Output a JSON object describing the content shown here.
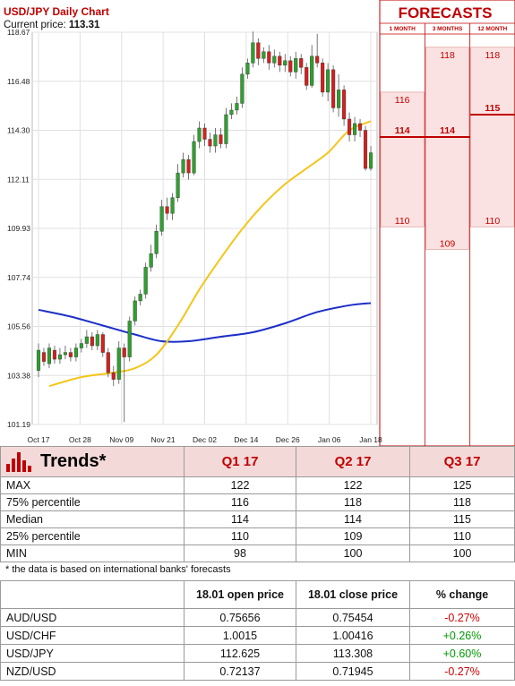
{
  "header": {
    "title": "USD/JPY Daily Chart",
    "price_label": "Current price: ",
    "price_value": "113.31"
  },
  "colors": {
    "candle_up": "#2ea02e",
    "candle_down": "#d42020",
    "ma_short": "#f5c518",
    "ma_long": "#1c2fc7",
    "forecast_red": "#c00000",
    "forecast_panel": "#fbe2e2"
  },
  "chart_data": [
    {
      "type": "candlestick",
      "y_ticks": [
        "118.67",
        "116.48",
        "114.30",
        "112.11",
        "109.93",
        "107.74",
        "105.56",
        "103.38",
        "101.19"
      ],
      "x_ticks": [
        "Oct 17",
        "Oct 28",
        "Nov 09",
        "Nov 21",
        "Dec 02",
        "Dec 14",
        "Dec 26",
        "Jan 06",
        "Jan 18"
      ],
      "ylim": [
        101.19,
        118.67
      ],
      "grid": true,
      "candles": [
        {
          "o": 103.6,
          "c": 104.5,
          "h": 104.8,
          "l": 103.3
        },
        {
          "o": 104.4,
          "c": 104.0,
          "h": 104.6,
          "l": 103.8
        },
        {
          "o": 103.9,
          "c": 104.6,
          "h": 104.8,
          "l": 103.7
        },
        {
          "o": 104.5,
          "c": 104.1,
          "h": 104.7,
          "l": 103.9
        },
        {
          "o": 104.1,
          "c": 104.3,
          "h": 104.6,
          "l": 103.9
        },
        {
          "o": 104.3,
          "c": 104.4,
          "h": 104.7,
          "l": 104.1
        },
        {
          "o": 104.4,
          "c": 104.2,
          "h": 104.6,
          "l": 104.0
        },
        {
          "o": 104.2,
          "c": 104.6,
          "h": 104.8,
          "l": 104.0
        },
        {
          "o": 104.6,
          "c": 104.8,
          "h": 105.0,
          "l": 104.4
        },
        {
          "o": 104.8,
          "c": 105.1,
          "h": 105.4,
          "l": 104.6
        },
        {
          "o": 105.1,
          "c": 104.7,
          "h": 105.3,
          "l": 104.5
        },
        {
          "o": 104.7,
          "c": 105.2,
          "h": 105.4,
          "l": 104.5
        },
        {
          "o": 105.2,
          "c": 104.4,
          "h": 105.3,
          "l": 104.2
        },
        {
          "o": 104.4,
          "c": 103.5,
          "h": 104.6,
          "l": 103.3
        },
        {
          "o": 103.5,
          "c": 103.2,
          "h": 103.8,
          "l": 102.9
        },
        {
          "o": 103.2,
          "c": 104.6,
          "h": 104.9,
          "l": 103.0
        },
        {
          "o": 104.6,
          "c": 104.2,
          "h": 104.8,
          "l": 101.3
        },
        {
          "o": 104.2,
          "c": 105.8,
          "h": 106.0,
          "l": 104.0
        },
        {
          "o": 105.8,
          "c": 106.7,
          "h": 106.9,
          "l": 105.6
        },
        {
          "o": 106.7,
          "c": 107.0,
          "h": 107.2,
          "l": 106.5
        },
        {
          "o": 107.0,
          "c": 108.2,
          "h": 108.4,
          "l": 106.8
        },
        {
          "o": 108.2,
          "c": 108.8,
          "h": 109.2,
          "l": 108.0
        },
        {
          "o": 108.8,
          "c": 109.8,
          "h": 110.1,
          "l": 108.6
        },
        {
          "o": 109.8,
          "c": 110.9,
          "h": 111.2,
          "l": 109.6
        },
        {
          "o": 110.9,
          "c": 110.6,
          "h": 111.3,
          "l": 110.3
        },
        {
          "o": 110.6,
          "c": 111.3,
          "h": 111.5,
          "l": 110.3
        },
        {
          "o": 111.3,
          "c": 112.4,
          "h": 112.8,
          "l": 111.1
        },
        {
          "o": 112.4,
          "c": 113.0,
          "h": 113.3,
          "l": 112.2
        },
        {
          "o": 113.0,
          "c": 112.4,
          "h": 113.2,
          "l": 112.1
        },
        {
          "o": 112.4,
          "c": 113.8,
          "h": 114.1,
          "l": 112.3
        },
        {
          "o": 113.8,
          "c": 114.4,
          "h": 114.7,
          "l": 113.5
        },
        {
          "o": 114.4,
          "c": 113.9,
          "h": 114.6,
          "l": 113.6
        },
        {
          "o": 113.9,
          "c": 113.6,
          "h": 114.2,
          "l": 113.3
        },
        {
          "o": 113.6,
          "c": 114.1,
          "h": 114.4,
          "l": 113.3
        },
        {
          "o": 114.1,
          "c": 113.7,
          "h": 114.4,
          "l": 113.5
        },
        {
          "o": 113.7,
          "c": 115.0,
          "h": 115.3,
          "l": 113.5
        },
        {
          "o": 115.0,
          "c": 115.2,
          "h": 115.5,
          "l": 114.8
        },
        {
          "o": 115.2,
          "c": 115.5,
          "h": 115.8,
          "l": 115.0
        },
        {
          "o": 115.5,
          "c": 116.8,
          "h": 117.1,
          "l": 115.3
        },
        {
          "o": 116.8,
          "c": 117.3,
          "h": 117.5,
          "l": 116.6
        },
        {
          "o": 117.3,
          "c": 118.2,
          "h": 118.7,
          "l": 117.1
        },
        {
          "o": 118.2,
          "c": 117.5,
          "h": 118.4,
          "l": 117.2
        },
        {
          "o": 117.5,
          "c": 117.8,
          "h": 118.0,
          "l": 117.3
        },
        {
          "o": 117.8,
          "c": 117.3,
          "h": 118.1,
          "l": 117.0
        },
        {
          "o": 117.3,
          "c": 117.6,
          "h": 117.9,
          "l": 117.1
        },
        {
          "o": 117.6,
          "c": 117.2,
          "h": 117.8,
          "l": 116.9
        },
        {
          "o": 117.2,
          "c": 117.4,
          "h": 117.7,
          "l": 116.9
        },
        {
          "o": 117.4,
          "c": 116.9,
          "h": 117.6,
          "l": 116.7
        },
        {
          "o": 116.9,
          "c": 117.5,
          "h": 117.8,
          "l": 116.6
        },
        {
          "o": 117.5,
          "c": 117.1,
          "h": 117.7,
          "l": 116.8
        },
        {
          "o": 117.1,
          "c": 116.3,
          "h": 117.3,
          "l": 116.1
        },
        {
          "o": 116.3,
          "c": 117.6,
          "h": 118.1,
          "l": 116.2
        },
        {
          "o": 117.6,
          "c": 117.3,
          "h": 118.6,
          "l": 117.1
        },
        {
          "o": 117.3,
          "c": 116.0,
          "h": 117.5,
          "l": 115.8
        },
        {
          "o": 116.0,
          "c": 117.0,
          "h": 117.3,
          "l": 115.6
        },
        {
          "o": 117.0,
          "c": 115.3,
          "h": 117.2,
          "l": 115.1
        },
        {
          "o": 115.3,
          "c": 116.1,
          "h": 116.8,
          "l": 114.9
        },
        {
          "o": 116.1,
          "c": 114.8,
          "h": 116.3,
          "l": 114.5
        },
        {
          "o": 114.8,
          "c": 114.1,
          "h": 115.1,
          "l": 113.8
        },
        {
          "o": 114.1,
          "c": 114.6,
          "h": 114.9,
          "l": 113.8
        },
        {
          "o": 114.6,
          "c": 114.3,
          "h": 114.8,
          "l": 114.0
        },
        {
          "o": 114.3,
          "c": 112.6,
          "h": 114.5,
          "l": 112.5
        },
        {
          "o": 112.6,
          "c": 113.3,
          "h": 113.6,
          "l": 112.5
        }
      ],
      "ma_short": [
        {
          "i": 2,
          "v": 102.9
        },
        {
          "i": 8,
          "v": 103.3
        },
        {
          "i": 14,
          "v": 103.5
        },
        {
          "i": 18,
          "v": 103.7
        },
        {
          "i": 22,
          "v": 104.3
        },
        {
          "i": 26,
          "v": 105.6
        },
        {
          "i": 30,
          "v": 107.2
        },
        {
          "i": 34,
          "v": 108.6
        },
        {
          "i": 38,
          "v": 109.9
        },
        {
          "i": 42,
          "v": 111.0
        },
        {
          "i": 46,
          "v": 111.9
        },
        {
          "i": 50,
          "v": 112.6
        },
        {
          "i": 54,
          "v": 113.3
        },
        {
          "i": 58,
          "v": 114.3
        },
        {
          "i": 62,
          "v": 114.7
        }
      ],
      "ma_long": [
        {
          "i": 0,
          "v": 106.3
        },
        {
          "i": 6,
          "v": 106.0
        },
        {
          "i": 12,
          "v": 105.6
        },
        {
          "i": 18,
          "v": 105.2
        },
        {
          "i": 23,
          "v": 104.9
        },
        {
          "i": 28,
          "v": 104.9
        },
        {
          "i": 34,
          "v": 105.1
        },
        {
          "i": 40,
          "v": 105.3
        },
        {
          "i": 46,
          "v": 105.7
        },
        {
          "i": 52,
          "v": 106.2
        },
        {
          "i": 58,
          "v": 106.5
        },
        {
          "i": 62,
          "v": 106.6
        }
      ]
    },
    {
      "type": "table",
      "title": "FORECASTS",
      "columns": [
        "1 MONTH",
        "3 MONTHS",
        "12 MONTH"
      ],
      "ranges": [
        {
          "high": 116,
          "median": 114,
          "low": 110,
          "high_label": "116",
          "median_label": "114",
          "low_label": "110"
        },
        {
          "high": 118,
          "median": 114,
          "low": 109,
          "high_label": "118",
          "median_label": "114",
          "low_label": "109"
        },
        {
          "high": 118,
          "median": 115,
          "low": 110,
          "high_label": "118",
          "median_label": "115",
          "low_label": "110"
        }
      ]
    }
  ],
  "trends": {
    "title": "Trends*",
    "columns": [
      "Q1 17",
      "Q2 17",
      "Q3 17"
    ],
    "rows": [
      {
        "label": "MAX",
        "values": [
          "122",
          "122",
          "125"
        ]
      },
      {
        "label": "75% percentile",
        "values": [
          "116",
          "118",
          "118"
        ]
      },
      {
        "label": "Median",
        "values": [
          "114",
          "114",
          "115"
        ]
      },
      {
        "label": "25% percentile",
        "values": [
          "110",
          "109",
          "110"
        ]
      },
      {
        "label": "MIN",
        "values": [
          "98",
          "100",
          "100"
        ]
      }
    ],
    "footnote": "* the data is based on international banks' forecasts"
  },
  "prices": {
    "columns": [
      "",
      "18.01 open price",
      "18.01 close price",
      "% change"
    ],
    "rows": [
      {
        "pair": "AUD/USD",
        "open": "0.75656",
        "close": "0.75454",
        "change": "-0.27%",
        "dir": "neg"
      },
      {
        "pair": "USD/CHF",
        "open": "1.0015",
        "close": "1.00416",
        "change": "+0.26%",
        "dir": "pos"
      },
      {
        "pair": "USD/JPY",
        "open": "112.625",
        "close": "113.308",
        "change": "+0.60%",
        "dir": "pos"
      },
      {
        "pair": "NZD/USD",
        "open": "0.72137",
        "close": "0.71945",
        "change": "-0.27%",
        "dir": "neg"
      }
    ]
  }
}
